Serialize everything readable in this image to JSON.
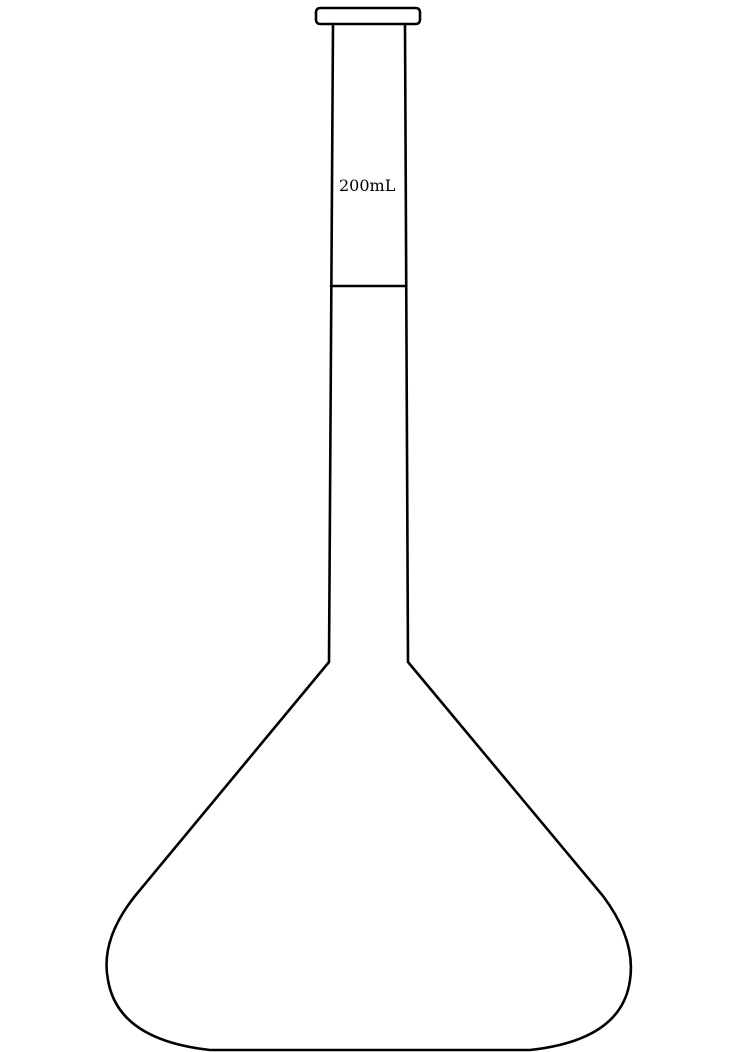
{
  "flask": {
    "volume_label": "200mL"
  }
}
